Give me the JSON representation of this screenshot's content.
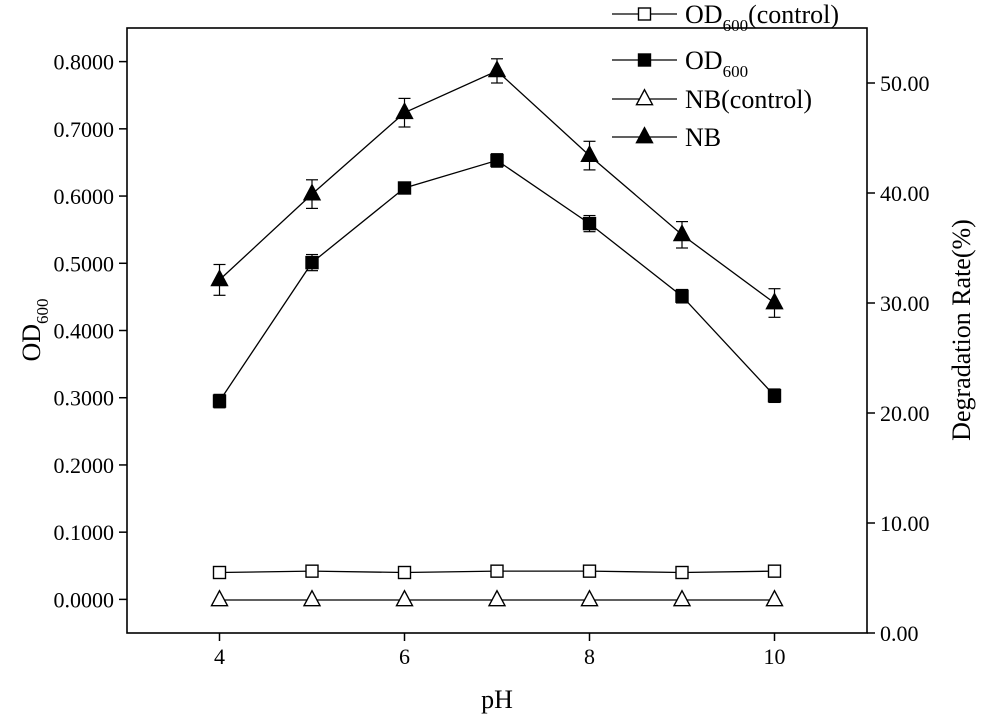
{
  "chart_data": {
    "type": "line",
    "x": [
      4,
      5,
      6,
      7,
      8,
      9,
      10
    ],
    "xlabel": "pH",
    "ylabel": {
      "main": "OD",
      "sub": "600"
    },
    "y2label": "Degradation Rate(%)",
    "xlim": [
      3,
      11
    ],
    "ylim": [
      -0.05,
      0.85
    ],
    "y2lim": [
      0,
      55
    ],
    "xticks": [
      "4",
      "6",
      "8",
      "10"
    ],
    "yticks": [
      "0.0000",
      "0.1000",
      "0.2000",
      "0.3000",
      "0.4000",
      "0.5000",
      "0.6000",
      "0.7000",
      "0.8000"
    ],
    "y2ticks": [
      "0.00",
      "10.00",
      "20.00",
      "30.00",
      "40.00",
      "50.00"
    ],
    "grid": false,
    "legend_position": "top-right",
    "series": [
      {
        "key": "od_control",
        "name": {
          "main": "OD",
          "sub": "600",
          "suffix": "(control)"
        },
        "axis": "left",
        "marker": "square-open",
        "values": [
          0.04,
          0.042,
          0.04,
          0.042,
          0.042,
          0.04,
          0.042
        ]
      },
      {
        "key": "od",
        "name": {
          "main": "OD",
          "sub": "600",
          "suffix": ""
        },
        "axis": "left",
        "marker": "square-filled",
        "values": [
          0.295,
          0.501,
          0.612,
          0.653,
          0.559,
          0.451,
          0.303
        ],
        "errors": [
          0.01,
          0.012,
          0.008,
          0.01,
          0.012,
          0.01,
          0.01
        ]
      },
      {
        "key": "nb_control",
        "name": {
          "main": "NB(control)",
          "sub": "",
          "suffix": ""
        },
        "axis": "right",
        "marker": "triangle-open",
        "values": [
          3.0,
          3.0,
          3.0,
          3.0,
          3.0,
          3.0,
          3.0
        ]
      },
      {
        "key": "nb",
        "name": {
          "main": "NB",
          "sub": "",
          "suffix": ""
        },
        "axis": "right",
        "marker": "triangle-filled",
        "values": [
          32.1,
          39.9,
          47.3,
          51.1,
          43.4,
          36.2,
          30.0
        ],
        "errors": [
          1.4,
          1.3,
          1.3,
          1.1,
          1.3,
          1.2,
          1.3
        ]
      }
    ]
  }
}
